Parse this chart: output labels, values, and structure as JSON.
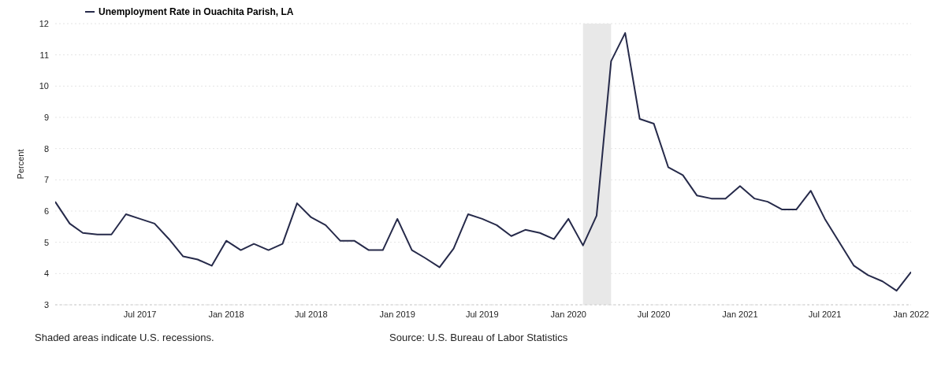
{
  "chart_data": {
    "type": "line",
    "ylabel": "Percent",
    "x": [
      "2017-01",
      "2017-02",
      "2017-03",
      "2017-04",
      "2017-05",
      "2017-06",
      "2017-07",
      "2017-08",
      "2017-09",
      "2017-10",
      "2017-11",
      "2017-12",
      "2018-01",
      "2018-02",
      "2018-03",
      "2018-04",
      "2018-05",
      "2018-06",
      "2018-07",
      "2018-08",
      "2018-09",
      "2018-10",
      "2018-11",
      "2018-12",
      "2019-01",
      "2019-02",
      "2019-03",
      "2019-04",
      "2019-05",
      "2019-06",
      "2019-07",
      "2019-08",
      "2019-09",
      "2019-10",
      "2019-11",
      "2019-12",
      "2020-01",
      "2020-02",
      "2020-03",
      "2020-04",
      "2020-05",
      "2020-06",
      "2020-07",
      "2020-08",
      "2020-09",
      "2020-10",
      "2020-11",
      "2020-12",
      "2021-01",
      "2021-02",
      "2021-03",
      "2021-04",
      "2021-05",
      "2021-06",
      "2021-07",
      "2021-08",
      "2021-09",
      "2021-10",
      "2021-11",
      "2021-12",
      "2022-01"
    ],
    "series": [
      {
        "name": "Unemployment Rate in Ouachita Parish, LA",
        "color": "#262a4a",
        "values": [
          6.3,
          5.6,
          5.3,
          5.25,
          5.25,
          5.9,
          5.75,
          5.6,
          5.1,
          4.55,
          4.45,
          4.25,
          5.05,
          4.75,
          4.95,
          4.75,
          4.95,
          6.25,
          5.8,
          5.55,
          5.05,
          5.05,
          4.75,
          4.75,
          5.75,
          4.75,
          4.5,
          4.2,
          4.8,
          5.9,
          5.75,
          5.55,
          5.2,
          5.4,
          5.3,
          5.1,
          5.75,
          4.9,
          5.85,
          10.8,
          11.7,
          8.95,
          8.8,
          7.4,
          7.15,
          6.5,
          6.4,
          6.4,
          6.8,
          6.4,
          6.3,
          6.05,
          6.05,
          6.65,
          5.75,
          5.0,
          4.25,
          3.95,
          3.75,
          3.45,
          4.05
        ]
      }
    ],
    "xlim": [
      "2017-01",
      "2022-01"
    ],
    "xticks": [
      {
        "value": "2017-07",
        "label": "Jul 2017"
      },
      {
        "value": "2018-01",
        "label": "Jan 2018"
      },
      {
        "value": "2018-07",
        "label": "Jul 2018"
      },
      {
        "value": "2019-01",
        "label": "Jan 2019"
      },
      {
        "value": "2019-07",
        "label": "Jul 2019"
      },
      {
        "value": "2020-01",
        "label": "Jan 2020"
      },
      {
        "value": "2020-07",
        "label": "Jul 2020"
      },
      {
        "value": "2021-01",
        "label": "Jan 2021"
      },
      {
        "value": "2021-07",
        "label": "Jul 2021"
      },
      {
        "value": "2022-01",
        "label": "Jan 2022"
      }
    ],
    "ylim": [
      3,
      12
    ],
    "yticks": [
      3,
      4,
      5,
      6,
      7,
      8,
      9,
      10,
      11,
      12
    ],
    "bands": [
      {
        "axis": "x",
        "from": "2020-02",
        "to": "2020-04",
        "color": "#e8e8e8"
      }
    ],
    "grid": "y",
    "legend": "top left",
    "line_style": "solid",
    "marker": "none",
    "annotations": [
      "Shaded areas indicate U.S. recessions.",
      "Source: U.S. Bureau of Labor Statistics"
    ]
  }
}
